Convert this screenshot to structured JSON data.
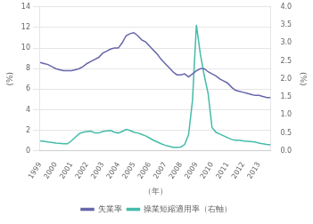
{
  "chart_data": {
    "type": "line",
    "x": [
      1999,
      1999.25,
      1999.5,
      1999.75,
      2000,
      2000.25,
      2000.5,
      2000.75,
      2001,
      2001.25,
      2001.5,
      2001.75,
      2002,
      2002.25,
      2002.5,
      2002.75,
      2003,
      2003.25,
      2003.5,
      2003.75,
      2004,
      2004.25,
      2004.5,
      2004.75,
      2005,
      2005.25,
      2005.5,
      2005.75,
      2006,
      2006.25,
      2006.5,
      2006.75,
      2007,
      2007.25,
      2007.5,
      2007.75,
      2008,
      2008.25,
      2008.5,
      2008.75,
      2009,
      2009.25,
      2009.5,
      2009.75,
      2010,
      2010.25,
      2010.5,
      2010.75,
      2011,
      2011.25,
      2011.5,
      2011.75,
      2012,
      2012.25,
      2012.5,
      2012.75,
      2013,
      2013.25,
      2013.5,
      2013.75
    ],
    "series": [
      {
        "name": "失業率",
        "color": "#6666aa",
        "values": [
          8.6,
          8.5,
          8.4,
          8.2,
          8.0,
          7.9,
          7.8,
          7.8,
          7.8,
          7.9,
          8.0,
          8.2,
          8.5,
          8.7,
          8.9,
          9.1,
          9.5,
          9.7,
          9.9,
          10.0,
          10.0,
          10.5,
          11.2,
          11.4,
          11.5,
          11.2,
          10.8,
          10.6,
          10.2,
          9.8,
          9.4,
          8.9,
          8.5,
          8.1,
          7.7,
          7.4,
          7.4,
          7.5,
          7.2,
          7.5,
          7.8,
          8.0,
          8.0,
          7.7,
          7.5,
          7.3,
          7.0,
          6.8,
          6.6,
          6.2,
          5.9,
          5.8,
          5.7,
          5.6,
          5.5,
          5.4,
          5.4,
          5.3,
          5.2,
          5.2
        ]
      },
      {
        "name": "操業短縮適用率（右軸）",
        "color": "#44bbaa",
        "axis": "y2",
        "values": [
          0.28,
          0.27,
          0.25,
          0.24,
          0.22,
          0.21,
          0.2,
          0.2,
          0.28,
          0.38,
          0.48,
          0.52,
          0.54,
          0.55,
          0.5,
          0.5,
          0.54,
          0.56,
          0.57,
          0.52,
          0.5,
          0.54,
          0.6,
          0.57,
          0.52,
          0.5,
          0.46,
          0.42,
          0.36,
          0.3,
          0.25,
          0.2,
          0.16,
          0.13,
          0.1,
          0.1,
          0.11,
          0.18,
          0.45,
          1.4,
          3.5,
          2.7,
          2.1,
          1.6,
          0.65,
          0.52,
          0.47,
          0.42,
          0.37,
          0.32,
          0.3,
          0.3,
          0.28,
          0.27,
          0.26,
          0.25,
          0.22,
          0.2,
          0.18,
          0.17
        ]
      }
    ],
    "x_label": "（年）",
    "y_label": "(%)",
    "y2_label": "(%)",
    "xlim": [
      1999,
      2013.75
    ],
    "xticks": [
      1999,
      2000,
      2001,
      2002,
      2003,
      2004,
      2005,
      2006,
      2007,
      2008,
      2009,
      2010,
      2011,
      2012,
      2013
    ],
    "ylim": [
      0,
      14
    ],
    "yticks": [
      0,
      2,
      4,
      6,
      8,
      10,
      12,
      14
    ],
    "y2lim": [
      0,
      4
    ],
    "y2ticks": [
      {
        "value": 0,
        "label": "0.0"
      },
      0.5,
      {
        "value": 1,
        "label": "1.0"
      },
      1.5,
      {
        "value": 2,
        "label": "2.0"
      },
      2.5,
      {
        "value": 3,
        "label": "3.0"
      },
      3.5,
      {
        "value": 4,
        "label": "4.0"
      }
    ],
    "grid": true,
    "legend": "bottom"
  }
}
